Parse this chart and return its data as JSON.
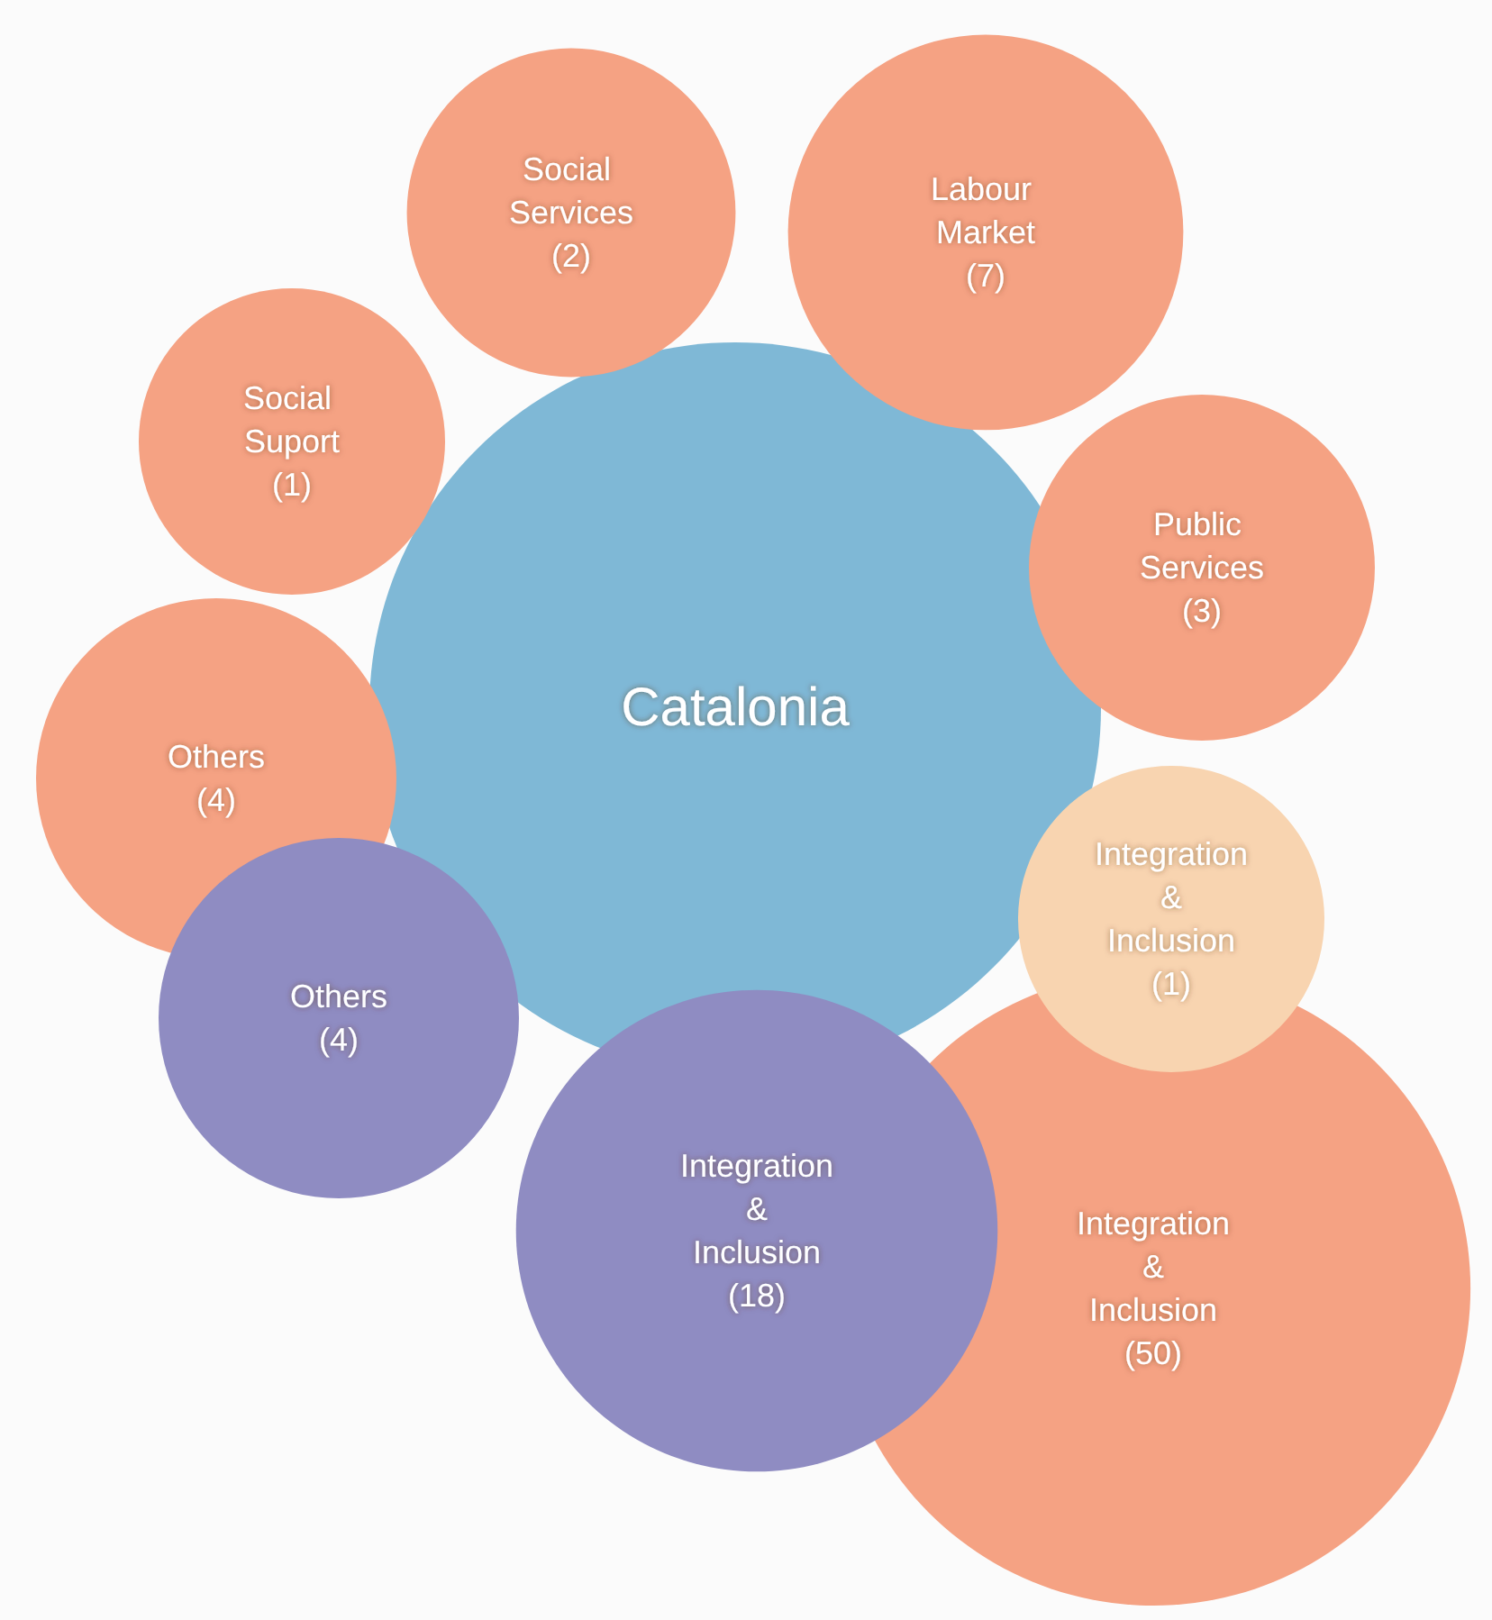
{
  "chart_data": {
    "type": "other",
    "categories": [
      "Catalonia",
      "Social Suport",
      "Social Services",
      "Labour Market",
      "Public Services",
      "Integration & Inclusion",
      "Integration & Inclusion",
      "Integration & Inclusion",
      "Others",
      "Others"
    ],
    "values": [
      null,
      1,
      2,
      7,
      3,
      50,
      1,
      18,
      4,
      4
    ],
    "value_labels": [
      null,
      "(1)",
      "(2)",
      "(7)",
      "(3)",
      "(50)",
      "(1)",
      "(18)",
      "(4)",
      "(4)"
    ],
    "colors": [
      "#7fb8d6",
      "#f5a283",
      "#f5a283",
      "#f5a283",
      "#f5a283",
      "#f5a283",
      "#f8d4b0",
      "#8f8cc2",
      "#f5a283",
      "#8f8cc2"
    ]
  }
}
